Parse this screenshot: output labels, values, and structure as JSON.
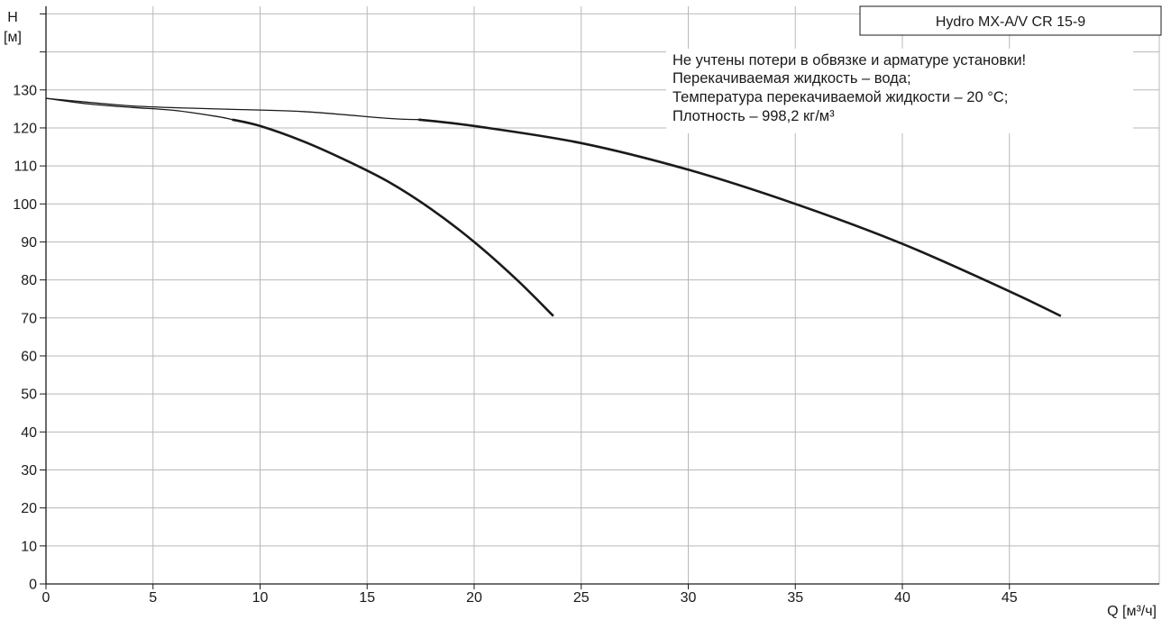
{
  "chart_data": {
    "type": "line",
    "title": "",
    "xlabel": "Q [м³/ч]",
    "ylabel_top": "H",
    "ylabel_bottom": "[м]",
    "xlim": [
      0,
      52
    ],
    "ylim": [
      0,
      152
    ],
    "x_ticks": [
      0,
      5,
      10,
      15,
      20,
      25,
      30,
      35,
      40,
      45
    ],
    "y_ticks": [
      0,
      10,
      20,
      30,
      40,
      50,
      60,
      70,
      80,
      90,
      100,
      110,
      120,
      130
    ],
    "grid": true,
    "legend": "none",
    "series": [
      {
        "x": [
          0,
          2,
          4,
          6,
          8,
          8.7
        ],
        "y": [
          127.8,
          126.3,
          125.4,
          124.6,
          123.0,
          122.2
        ],
        "style": "thin"
      },
      {
        "x": [
          8.7,
          10,
          12,
          14,
          16,
          18,
          20,
          22,
          23.7
        ],
        "y": [
          122.2,
          120.5,
          116.5,
          111.5,
          105.8,
          98.6,
          90.0,
          80.0,
          70.5
        ],
        "style": "thick"
      },
      {
        "x": [
          0,
          4,
          8,
          12,
          16,
          17.4
        ],
        "y": [
          127.8,
          125.8,
          125.0,
          124.3,
          122.5,
          122.2
        ],
        "style": "thin"
      },
      {
        "x": [
          17.4,
          20,
          25,
          30,
          35,
          40,
          45,
          47.4
        ],
        "y": [
          122.2,
          120.5,
          116.0,
          109.0,
          100.0,
          89.5,
          77.0,
          70.5
        ],
        "style": "thick"
      }
    ],
    "annotation": {
      "badge": "Hydro MX-A/V CR 15-9",
      "lines": [
        "Не учтены потери в обвязке и арматуре установки!",
        "Перекачиваемая жидкость – вода;",
        "Температура перекачиваемой жидкости – 20 °C;",
        "Плотность – 998,2 кг/м³"
      ]
    },
    "colors": {
      "grid": "#b8b8b8",
      "axis": "#1a1a1a",
      "curve": "#1a1a1a",
      "background": "#ffffff"
    }
  }
}
